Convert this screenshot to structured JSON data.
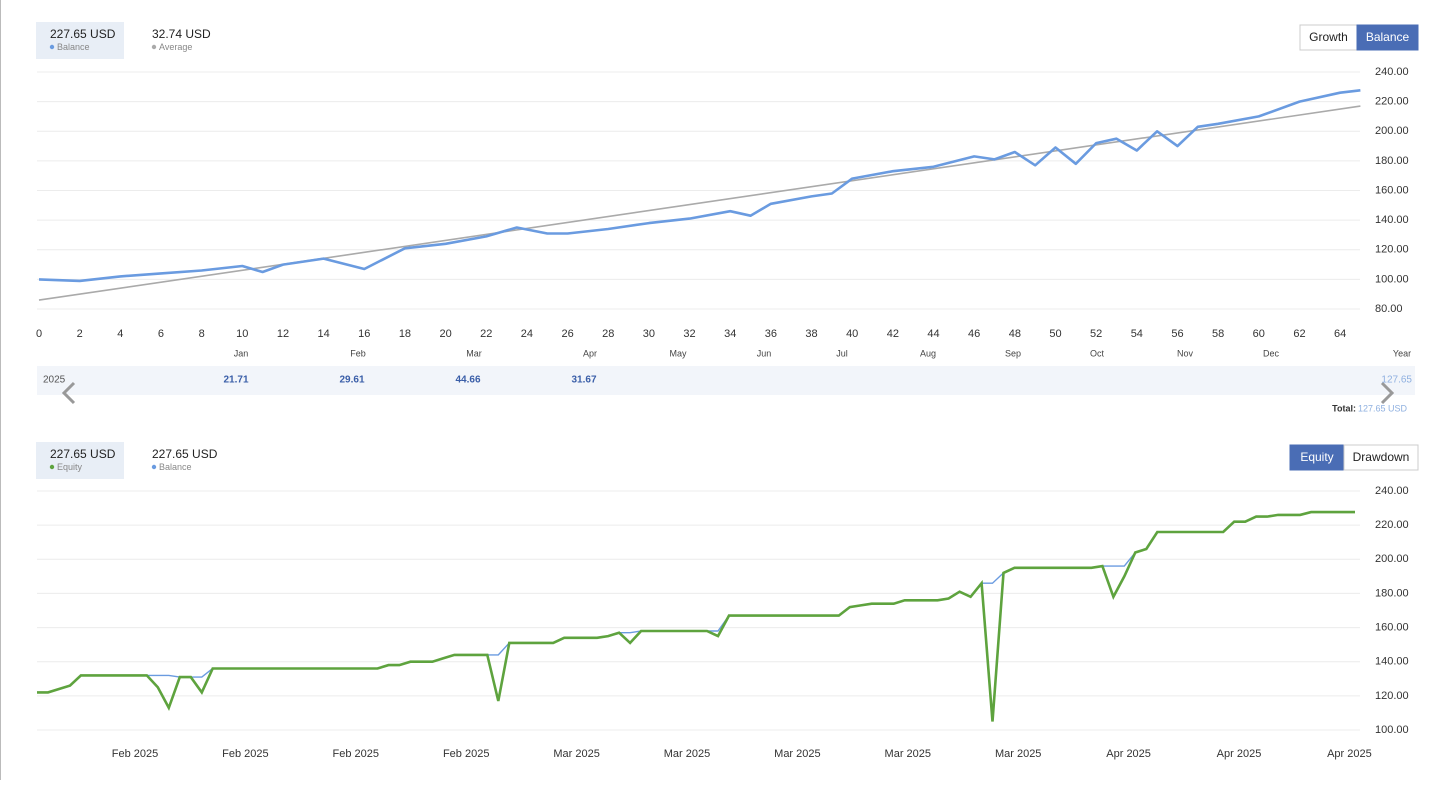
{
  "chart_data": [
    {
      "type": "line",
      "summary": [
        {
          "value": "227.65 USD",
          "name": "Balance"
        },
        {
          "value": "32.74 USD",
          "name": "Average"
        }
      ],
      "toggles": [
        "Growth",
        "Balance"
      ],
      "active_toggle": 1,
      "xlim": [
        0,
        65
      ],
      "xticks": [
        0,
        2,
        4,
        6,
        8,
        10,
        12,
        14,
        16,
        18,
        20,
        22,
        24,
        26,
        28,
        30,
        32,
        34,
        36,
        38,
        40,
        42,
        44,
        46,
        48,
        50,
        52,
        54,
        56,
        58,
        60,
        62,
        64
      ],
      "ylim": [
        80,
        240
      ],
      "yticks": [
        {
          "value": 80,
          "label": "80.00"
        },
        {
          "value": 100,
          "label": "100.00"
        },
        {
          "value": 120,
          "label": "120.00"
        },
        {
          "value": 140,
          "label": "140.00"
        },
        {
          "value": 160,
          "label": "160.00"
        },
        {
          "value": 180,
          "label": "180.00"
        },
        {
          "value": 200,
          "label": "200.00"
        },
        {
          "value": 220,
          "label": "220.00"
        },
        {
          "value": 240,
          "label": "240.00"
        }
      ],
      "grid": true,
      "month_labels": [
        "Jan",
        "Feb",
        "Mar",
        "Apr",
        "May",
        "Jun",
        "Jul",
        "Aug",
        "Sep",
        "Oct",
        "Nov",
        "Dec",
        "Year"
      ],
      "series": [
        {
          "name": "Balance",
          "color": "#6a9be0",
          "x": [
            0,
            2,
            4,
            6,
            8,
            10,
            11,
            12,
            14,
            16,
            18,
            20,
            22,
            23.5,
            25,
            26,
            28,
            30,
            32,
            34,
            35,
            36,
            38,
            39,
            40,
            42,
            44,
            46,
            47,
            48,
            49,
            50,
            51,
            52,
            53,
            54,
            55,
            56,
            57,
            58,
            60,
            62,
            64,
            65
          ],
          "values": [
            100,
            99,
            102,
            104,
            106,
            109,
            105,
            110,
            114,
            107,
            121,
            124,
            129,
            135,
            131,
            131,
            134,
            138,
            141,
            146,
            143,
            151,
            156,
            158,
            168,
            173,
            176,
            183,
            181,
            186,
            177,
            189,
            178,
            192,
            195,
            187,
            200,
            190,
            203,
            205,
            210,
            220,
            226,
            227.65
          ]
        },
        {
          "name": "Average",
          "color": "#aaaaaa",
          "x": [
            0,
            65
          ],
          "values": [
            86,
            217
          ]
        }
      ],
      "yearly": {
        "year": "2025",
        "values": [
          21.71,
          29.61,
          44.66,
          31.67
        ],
        "total": 127.65,
        "total_label": "Total:",
        "total_text": "127.65 USD"
      }
    },
    {
      "type": "line",
      "summary": [
        {
          "value": "227.65 USD",
          "name": "Equity"
        },
        {
          "value": "227.65 USD",
          "name": "Balance"
        }
      ],
      "toggles": [
        "Equity",
        "Drawdown"
      ],
      "active_toggle": 0,
      "ylim": [
        100,
        240
      ],
      "yticks": [
        {
          "value": 100,
          "label": "100.00"
        },
        {
          "value": 120,
          "label": "120.00"
        },
        {
          "value": 140,
          "label": "140.00"
        },
        {
          "value": 160,
          "label": "160.00"
        },
        {
          "value": 180,
          "label": "180.00"
        },
        {
          "value": 200,
          "label": "200.00"
        },
        {
          "value": 220,
          "label": "220.00"
        },
        {
          "value": 240,
          "label": "240.00"
        }
      ],
      "grid": true,
      "x_labels": [
        "Feb 2025",
        "Feb 2025",
        "Feb 2025",
        "Feb 2025",
        "Mar 2025",
        "Mar 2025",
        "Mar 2025",
        "Mar 2025",
        "Mar 2025",
        "Apr 2025",
        "Apr 2025",
        "Apr 2025"
      ],
      "series": [
        {
          "name": "Balance",
          "color": "#6a9be0",
          "values": [
            122,
            122,
            124,
            126,
            132,
            132,
            132,
            132,
            132,
            132,
            132,
            132,
            132,
            131,
            131,
            131,
            136,
            136,
            136,
            136,
            136,
            136,
            136,
            136,
            136,
            136,
            136,
            136,
            136,
            136,
            136,
            136,
            138,
            138,
            140,
            140,
            140,
            142,
            144,
            144,
            144,
            144,
            144,
            151,
            151,
            151,
            151,
            151,
            154,
            154,
            154,
            154,
            155,
            157,
            157,
            158,
            158,
            158,
            158,
            158,
            158,
            158,
            158,
            167,
            167,
            167,
            167,
            167,
            167,
            167,
            167,
            167,
            167,
            167,
            172,
            173,
            174,
            174,
            174,
            176,
            176,
            176,
            176,
            177,
            181,
            178,
            186,
            186,
            192,
            195,
            195,
            195,
            195,
            195,
            195,
            195,
            195,
            196,
            196,
            196,
            204,
            206,
            216,
            216,
            216,
            216,
            216,
            216,
            216,
            222,
            222,
            225,
            225,
            226,
            226,
            226,
            227.65,
            227.65,
            227.65,
            227.65,
            227.65
          ]
        },
        {
          "name": "Equity",
          "color": "#5ea33e",
          "values": [
            122,
            122,
            124,
            126,
            132,
            132,
            132,
            132,
            132,
            132,
            132,
            125,
            113,
            131,
            131,
            122,
            136,
            136,
            136,
            136,
            136,
            136,
            136,
            136,
            136,
            136,
            136,
            136,
            136,
            136,
            136,
            136,
            138,
            138,
            140,
            140,
            140,
            142,
            144,
            144,
            144,
            144,
            117,
            151,
            151,
            151,
            151,
            151,
            154,
            154,
            154,
            154,
            155,
            157,
            151,
            158,
            158,
            158,
            158,
            158,
            158,
            158,
            155,
            167,
            167,
            167,
            167,
            167,
            167,
            167,
            167,
            167,
            167,
            167,
            172,
            173,
            174,
            174,
            174,
            176,
            176,
            176,
            176,
            177,
            181,
            178,
            186,
            105,
            192,
            195,
            195,
            195,
            195,
            195,
            195,
            195,
            195,
            196,
            178,
            190,
            204,
            206,
            216,
            216,
            216,
            216,
            216,
            216,
            216,
            222,
            222,
            225,
            225,
            226,
            226,
            226,
            227.65,
            227.65,
            227.65,
            227.65,
            227.65
          ]
        }
      ]
    }
  ]
}
